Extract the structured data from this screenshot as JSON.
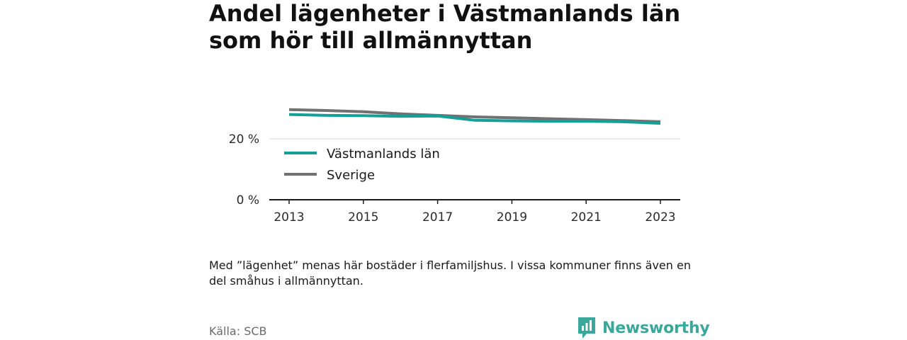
{
  "title_lines": [
    "Andel lägenheter i Västmanlands län",
    "som hör till allmännyttan"
  ],
  "note": "Med ”lägenhet” menas här bostäder i flerfamiljshus. I vissa kommuner finns även en del småhus i allmännyttan.",
  "source": "Källa: SCB",
  "brand": {
    "name": "Newsworthy",
    "color": "#3aa79b",
    "icon": "newsworthy-logo-icon"
  },
  "chart_data": {
    "type": "line",
    "title": "Andel lägenheter i Västmanlands län som hör till allmännyttan",
    "x": [
      2013,
      2014,
      2015,
      2016,
      2017,
      2018,
      2019,
      2020,
      2021,
      2022,
      2023
    ],
    "xticks": [
      2013,
      2015,
      2017,
      2019,
      2021,
      2023
    ],
    "xtick_labels": [
      "2013",
      "2015",
      "2017",
      "2019",
      "2021",
      "2023"
    ],
    "yticks": [
      0,
      20
    ],
    "ytick_labels": [
      "0 %",
      "20 %"
    ],
    "ylim": [
      0,
      30
    ],
    "grid": true,
    "legend_position": "inside-left",
    "series": [
      {
        "name": "Västmanlands län",
        "color": "#14a098",
        "values": [
          28.0,
          27.7,
          27.6,
          27.4,
          27.5,
          26.1,
          25.9,
          25.8,
          25.8,
          25.6,
          25.1
        ]
      },
      {
        "name": "Sverige",
        "color": "#717171",
        "values": [
          29.6,
          29.3,
          28.9,
          28.2,
          27.7,
          27.2,
          26.9,
          26.6,
          26.3,
          26.0,
          25.6
        ]
      }
    ]
  }
}
